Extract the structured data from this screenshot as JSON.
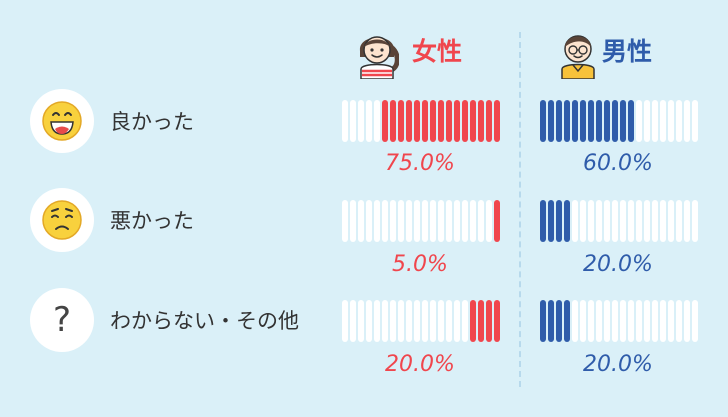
{
  "headers": [
    {
      "label": "女性",
      "color": "#f0464d"
    },
    {
      "label": "男性",
      "color": "#2f5caa"
    }
  ],
  "colors": {
    "female": "#f0464d",
    "male": "#2f5caa",
    "empty": "#ffffff"
  },
  "icons": [
    "girl-icon",
    "boy-icon",
    "grinning-face-icon",
    "worried-face-icon",
    "question-mark-icon"
  ],
  "rows": [
    {
      "label": "良かった",
      "icon": "grinning-face-icon",
      "female_pct": "75.0%",
      "male_pct": "60.0%"
    },
    {
      "label": "悪かった",
      "icon": "worried-face-icon",
      "female_pct": "5.0%",
      "male_pct": "20.0%"
    },
    {
      "label": "わからない・その他",
      "icon": "question-mark-icon",
      "female_pct": "20.0%",
      "male_pct": "20.0%"
    }
  ],
  "question_mark": "?",
  "chart_data": {
    "type": "bar",
    "categories": [
      "良かった",
      "悪かった",
      "わからない・その他"
    ],
    "series": [
      {
        "name": "女性",
        "values": [
          75.0,
          5.0,
          20.0
        ],
        "color": "#f0464d"
      },
      {
        "name": "男性",
        "values": [
          60.0,
          20.0,
          20.0
        ],
        "color": "#2f5caa"
      }
    ],
    "unit": "%",
    "ylim": [
      0,
      100
    ]
  }
}
